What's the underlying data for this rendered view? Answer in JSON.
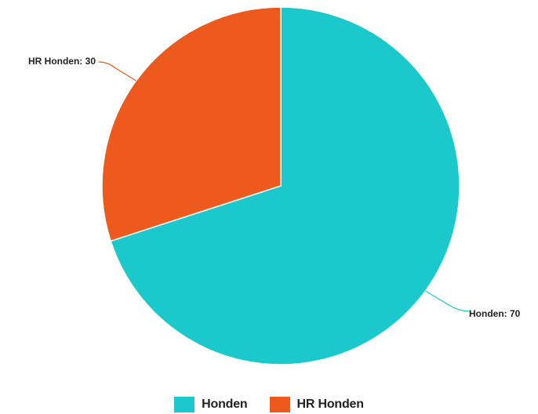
{
  "chart_data": {
    "type": "pie",
    "slices": [
      {
        "name": "Honden",
        "value": 70,
        "color": "#1BC8CB",
        "label": "Honden: 70"
      },
      {
        "name": "HR Honden",
        "value": 30,
        "color": "#EE5A1E",
        "label": "HR Honden: 30"
      }
    ],
    "legend": {
      "position": "bottom-center",
      "items": [
        "Honden",
        "HR Honden"
      ]
    }
  }
}
